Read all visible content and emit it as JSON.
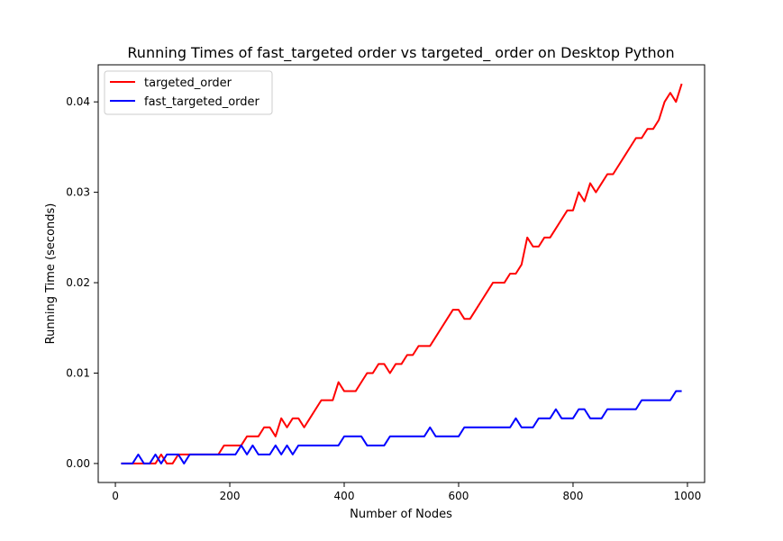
{
  "chart_data": {
    "type": "line",
    "title": "Running Times of fast_targeted order vs targeted_ order on Desktop Python",
    "xlabel": "Number of Nodes",
    "ylabel": "Running Time (seconds)",
    "xlim": [
      -30,
      1030
    ],
    "ylim": [
      -0.0021,
      0.0441
    ],
    "xticks": [
      0,
      200,
      400,
      600,
      800,
      1000
    ],
    "xtick_labels": [
      "0",
      "200",
      "400",
      "600",
      "800",
      "1000"
    ],
    "yticks": [
      0.0,
      0.01,
      0.02,
      0.03,
      0.04
    ],
    "ytick_labels": [
      "0.00",
      "0.01",
      "0.02",
      "0.03",
      "0.04"
    ],
    "grid": false,
    "legend_position": "upper-left",
    "x": [
      10,
      20,
      30,
      40,
      50,
      60,
      70,
      80,
      90,
      100,
      110,
      120,
      130,
      140,
      150,
      160,
      170,
      180,
      190,
      200,
      210,
      220,
      230,
      240,
      250,
      260,
      270,
      280,
      290,
      300,
      310,
      320,
      330,
      340,
      350,
      360,
      370,
      380,
      390,
      400,
      410,
      420,
      430,
      440,
      450,
      460,
      470,
      480,
      490,
      500,
      510,
      520,
      530,
      540,
      550,
      560,
      570,
      580,
      590,
      600,
      610,
      620,
      630,
      640,
      650,
      660,
      670,
      680,
      690,
      700,
      710,
      720,
      730,
      740,
      750,
      760,
      770,
      780,
      790,
      800,
      810,
      820,
      830,
      840,
      850,
      860,
      870,
      880,
      890,
      900,
      910,
      920,
      930,
      940,
      950,
      960,
      970,
      980,
      990
    ],
    "series": [
      {
        "name": "targeted_order",
        "color": "#ff0000",
        "values": [
          0,
          0,
          0,
          0,
          0,
          0,
          0,
          0.001,
          0,
          0,
          0.001,
          0.001,
          0.001,
          0.001,
          0.001,
          0.001,
          0.001,
          0.001,
          0.002,
          0.002,
          0.002,
          0.002,
          0.003,
          0.003,
          0.003,
          0.004,
          0.004,
          0.003,
          0.005,
          0.004,
          0.005,
          0.005,
          0.004,
          0.005,
          0.006,
          0.007,
          0.007,
          0.007,
          0.009,
          0.008,
          0.008,
          0.008,
          0.009,
          0.01,
          0.01,
          0.011,
          0.011,
          0.01,
          0.011,
          0.011,
          0.012,
          0.012,
          0.013,
          0.013,
          0.013,
          0.014,
          0.015,
          0.016,
          0.017,
          0.017,
          0.016,
          0.016,
          0.017,
          0.018,
          0.019,
          0.02,
          0.02,
          0.02,
          0.021,
          0.021,
          0.022,
          0.025,
          0.024,
          0.024,
          0.025,
          0.025,
          0.026,
          0.027,
          0.028,
          0.028,
          0.03,
          0.029,
          0.031,
          0.03,
          0.031,
          0.032,
          0.032,
          0.033,
          0.034,
          0.035,
          0.036,
          0.036,
          0.037,
          0.037,
          0.038,
          0.04,
          0.041,
          0.04,
          0.042
        ]
      },
      {
        "name": "fast_targeted_order",
        "color": "#0000ff",
        "values": [
          0,
          0,
          0,
          0.001,
          0,
          0,
          0.001,
          0,
          0.001,
          0.001,
          0.001,
          0,
          0.001,
          0.001,
          0.001,
          0.001,
          0.001,
          0.001,
          0.001,
          0.001,
          0.001,
          0.002,
          0.001,
          0.002,
          0.001,
          0.001,
          0.001,
          0.002,
          0.001,
          0.002,
          0.001,
          0.002,
          0.002,
          0.002,
          0.002,
          0.002,
          0.002,
          0.002,
          0.002,
          0.003,
          0.003,
          0.003,
          0.003,
          0.002,
          0.002,
          0.002,
          0.002,
          0.003,
          0.003,
          0.003,
          0.003,
          0.003,
          0.003,
          0.003,
          0.004,
          0.003,
          0.003,
          0.003,
          0.003,
          0.003,
          0.004,
          0.004,
          0.004,
          0.004,
          0.004,
          0.004,
          0.004,
          0.004,
          0.004,
          0.005,
          0.004,
          0.004,
          0.004,
          0.005,
          0.005,
          0.005,
          0.006,
          0.005,
          0.005,
          0.005,
          0.006,
          0.006,
          0.005,
          0.005,
          0.005,
          0.006,
          0.006,
          0.006,
          0.006,
          0.006,
          0.006,
          0.007,
          0.007,
          0.007,
          0.007,
          0.007,
          0.007,
          0.008,
          0.008
        ]
      }
    ]
  }
}
